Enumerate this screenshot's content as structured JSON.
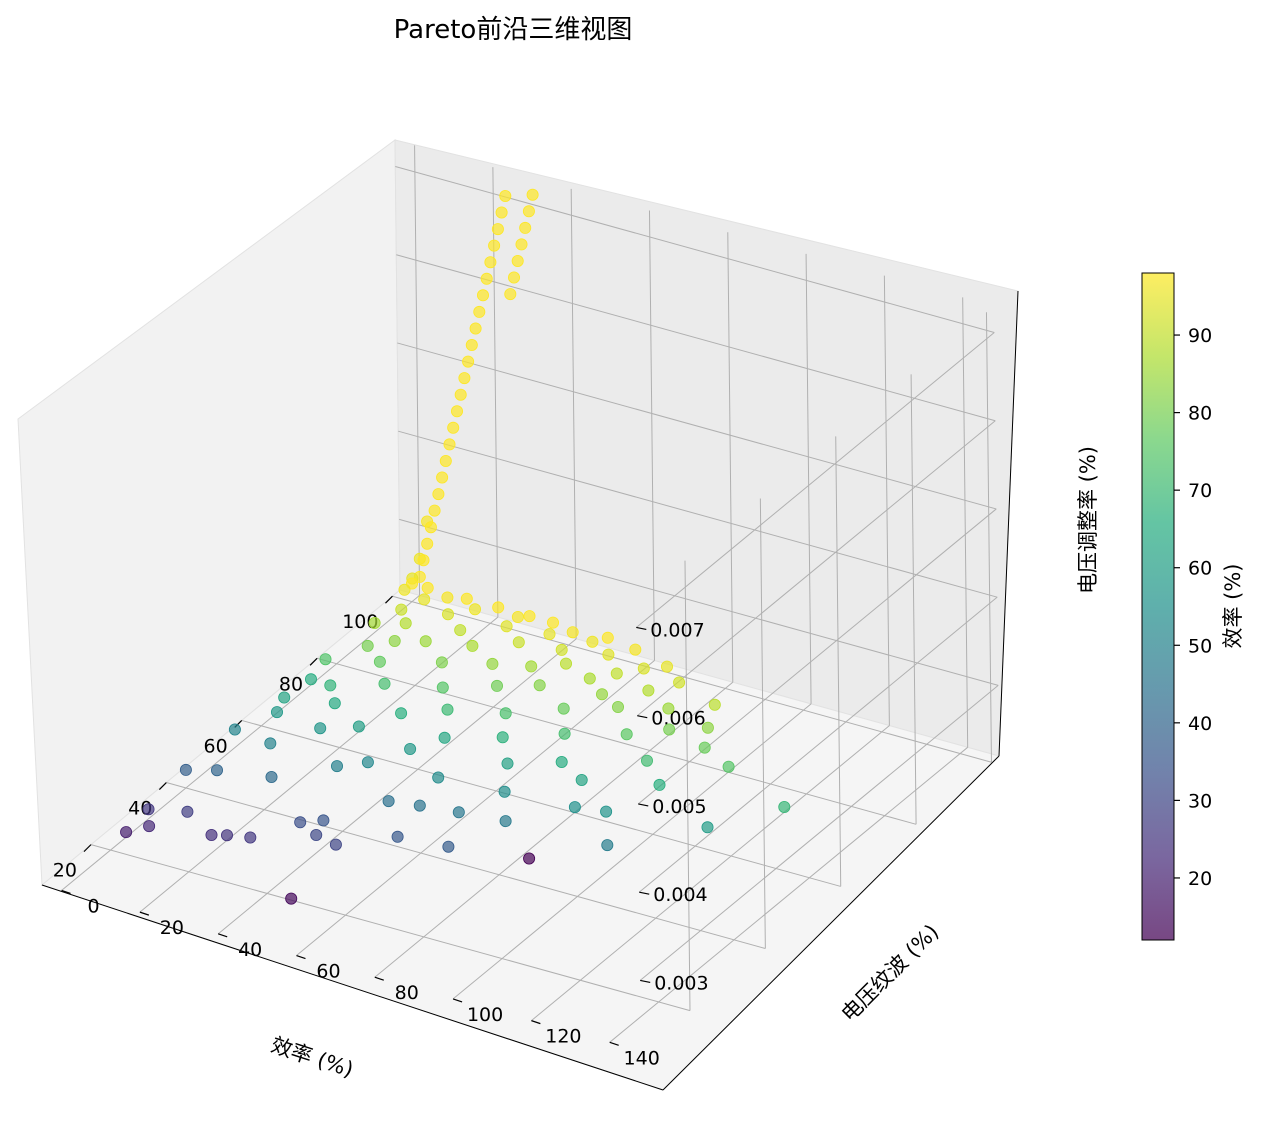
{
  "chart_data": {
    "type": "scatter",
    "projection": "3d",
    "title": "Pareto前沿三维视图",
    "xlabel": "效率 (%)",
    "ylabel": "电压纹波 (%)",
    "zlabel": "电压调整率 (%)",
    "xticks": [
      "20",
      "40",
      "60",
      "80",
      "100"
    ],
    "yticks": [
      "0",
      "20",
      "40",
      "60",
      "80",
      "100",
      "120",
      "140"
    ],
    "zticks": [
      "0.003",
      "0.004",
      "0.005",
      "0.006",
      "0.007"
    ],
    "xlim": [
      7,
      102
    ],
    "ylim": [
      -5,
      148
    ],
    "zlim": [
      0.0022,
      0.0073
    ],
    "grid": true,
    "colormap": "viridis",
    "marker_alpha": 0.7,
    "colorbar": {
      "label": "效率 (%)",
      "range": [
        12,
        98
      ],
      "ticks": [
        "20",
        "30",
        "40",
        "50",
        "60",
        "70",
        "80",
        "90"
      ]
    },
    "points": [
      [
        12,
        115,
        0.0038
      ],
      [
        14,
        52,
        0.0025
      ],
      [
        19,
        5,
        0.0025
      ],
      [
        22,
        8,
        0.0025
      ],
      [
        24,
        22,
        0.0025
      ],
      [
        25,
        25,
        0.0025
      ],
      [
        26,
        30,
        0.0025
      ],
      [
        26,
        4,
        0.0025
      ],
      [
        28,
        12,
        0.0025
      ],
      [
        30,
        48,
        0.0025
      ],
      [
        31,
        42,
        0.0025
      ],
      [
        33,
        36,
        0.0025
      ],
      [
        35,
        40,
        0.0025
      ],
      [
        36,
        58,
        0.0025
      ],
      [
        37,
        70,
        0.0025
      ],
      [
        38,
        2,
        0.0025
      ],
      [
        40,
        8,
        0.0025
      ],
      [
        42,
        20,
        0.0025
      ],
      [
        44,
        48,
        0.0025
      ],
      [
        45,
        55,
        0.0025
      ],
      [
        46,
        64,
        0.0025
      ],
      [
        47,
        75,
        0.0025
      ],
      [
        48,
        100,
        0.0025
      ],
      [
        49,
        30,
        0.0025
      ],
      [
        50,
        12,
        0.0025
      ],
      [
        51,
        2,
        0.0025
      ],
      [
        52,
        35,
        0.0025
      ],
      [
        53,
        52,
        0.0025
      ],
      [
        54,
        68,
        0.0025
      ],
      [
        55,
        85,
        0.0025
      ],
      [
        56,
        92,
        0.0025
      ],
      [
        57,
        18,
        0.0025
      ],
      [
        58,
        6,
        0.0025
      ],
      [
        58,
        40,
        0.0025
      ],
      [
        59,
        115,
        0.0025
      ],
      [
        60,
        25,
        0.0025
      ],
      [
        61,
        62,
        0.0025
      ],
      [
        62,
        4,
        0.0025
      ],
      [
        62,
        80,
        0.0025
      ],
      [
        63,
        44,
        0.0025
      ],
      [
        64,
        15,
        0.0025
      ],
      [
        65,
        72,
        0.0025
      ],
      [
        66,
        30,
        0.0025
      ],
      [
        66,
        96,
        0.0025
      ],
      [
        67,
        55,
        0.0025
      ],
      [
        68,
        10,
        0.0025
      ],
      [
        69,
        125,
        0.0025
      ],
      [
        70,
        38,
        0.0025
      ],
      [
        71,
        88,
        0.0025
      ],
      [
        72,
        20,
        0.0025
      ],
      [
        72,
        66,
        0.0025
      ],
      [
        73,
        50,
        0.0025
      ],
      [
        74,
        3,
        0.0025
      ],
      [
        75,
        105,
        0.0025
      ],
      [
        75,
        32,
        0.0025
      ],
      [
        76,
        78,
        0.0025
      ],
      [
        77,
        14,
        0.0025
      ],
      [
        78,
        60,
        0.0025
      ],
      [
        78,
        96,
        0.0025
      ],
      [
        79,
        42,
        0.0025
      ],
      [
        80,
        8,
        0.0025
      ],
      [
        80,
        85,
        0.0025
      ],
      [
        81,
        26,
        0.0025
      ],
      [
        82,
        70,
        0.0025
      ],
      [
        82,
        50,
        0.0025
      ],
      [
        83,
        12,
        0.0025
      ],
      [
        83,
        92,
        0.0025
      ],
      [
        84,
        36,
        0.0025
      ],
      [
        84,
        64,
        0.0025
      ],
      [
        85,
        18,
        0.0025
      ],
      [
        85,
        80,
        0.0025
      ],
      [
        86,
        44,
        0.0025
      ],
      [
        86,
        4,
        0.0025
      ],
      [
        87,
        58,
        0.0025
      ],
      [
        87,
        28,
        0.0025
      ],
      [
        88,
        72,
        0.0025
      ],
      [
        88,
        10,
        0.0025
      ],
      [
        89,
        50,
        0.0025
      ],
      [
        89,
        88,
        0.0025
      ],
      [
        90,
        22,
        0.0025
      ],
      [
        90,
        62,
        0.0025
      ],
      [
        91,
        36,
        0.0025
      ],
      [
        91,
        6,
        0.0025
      ],
      [
        92,
        76,
        0.0025
      ],
      [
        92,
        46,
        0.0025
      ],
      [
        93,
        16,
        0.0025
      ],
      [
        93,
        66,
        0.0025
      ],
      [
        94,
        30,
        0.0025
      ],
      [
        94,
        56,
        0.0025
      ],
      [
        95,
        8,
        0.0025
      ],
      [
        95,
        40,
        0.0025
      ],
      [
        95,
        70,
        0.0025
      ],
      [
        96,
        20,
        0.0025
      ],
      [
        96,
        50,
        0.0025
      ],
      [
        96,
        2,
        0.0025
      ],
      [
        97,
        30,
        0.0025
      ],
      [
        97,
        60,
        0.0025
      ],
      [
        97,
        12,
        0.0025
      ],
      [
        97,
        44,
        0.0025
      ],
      [
        98,
        6,
        0.0025
      ],
      [
        98,
        24,
        0.0025
      ],
      [
        98,
        38,
        0.0025
      ],
      [
        98,
        52,
        0.0025
      ],
      [
        98,
        16,
        0.0025
      ],
      [
        98,
        2,
        0.0025
      ],
      [
        98,
        32,
        0.0025
      ],
      [
        65,
        8,
        0.00265
      ],
      [
        95,
        5,
        0.0027
      ],
      [
        96,
        6,
        0.0029
      ],
      [
        97,
        7,
        0.0033
      ],
      [
        98,
        4,
        0.0026
      ],
      [
        98,
        5,
        0.0028
      ],
      [
        98,
        6,
        0.003
      ],
      [
        98,
        7,
        0.0032
      ],
      [
        98,
        8,
        0.0034
      ],
      [
        98,
        9,
        0.0036
      ],
      [
        98,
        10,
        0.0038
      ],
      [
        98,
        11,
        0.004
      ],
      [
        98,
        12,
        0.0042
      ],
      [
        98,
        13,
        0.0044
      ],
      [
        98,
        14,
        0.0046
      ],
      [
        98,
        15,
        0.0048
      ],
      [
        98,
        16,
        0.005
      ],
      [
        98,
        17,
        0.0052
      ],
      [
        98,
        18,
        0.0054
      ],
      [
        98,
        19,
        0.0056
      ],
      [
        98,
        20,
        0.0058
      ],
      [
        98,
        21,
        0.006
      ],
      [
        98,
        22,
        0.0062
      ],
      [
        98,
        23,
        0.0064
      ],
      [
        98,
        24,
        0.0066
      ],
      [
        98,
        25,
        0.0068
      ],
      [
        98,
        26,
        0.007
      ],
      [
        98,
        27,
        0.0072
      ],
      [
        98,
        28,
        0.0061
      ],
      [
        98,
        29,
        0.0063
      ],
      [
        98,
        30,
        0.0065
      ],
      [
        98,
        31,
        0.0067
      ],
      [
        98,
        32,
        0.0069
      ],
      [
        98,
        33,
        0.0071
      ],
      [
        98,
        34,
        0.0073
      ]
    ]
  }
}
